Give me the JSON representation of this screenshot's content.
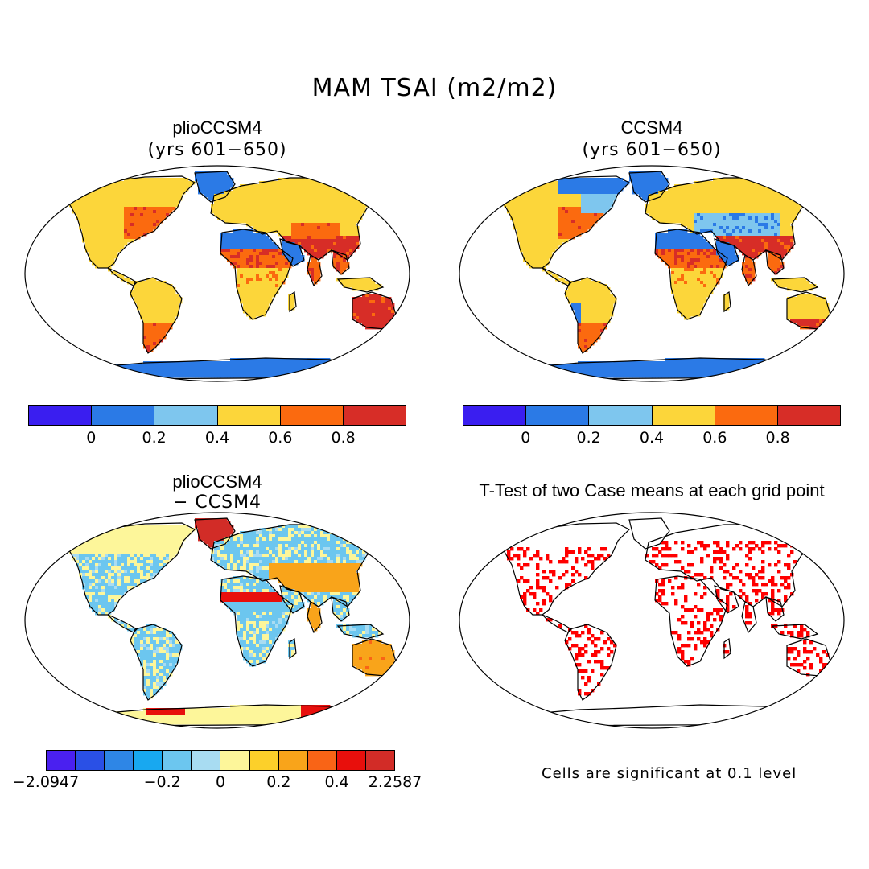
{
  "title": "MAM TSAI (m2/m2)",
  "panels": {
    "top_left": {
      "title": "plioCCSM4",
      "subtitle": "(yrs 601−650)"
    },
    "top_right": {
      "title": "CCSM4",
      "subtitle": "(yrs 601−650)"
    },
    "bottom_left": {
      "title": "plioCCSM4",
      "subtitle": "− CCSM4"
    },
    "bottom_right": {
      "title": "T-Test of two Case means at each grid point"
    }
  },
  "colorbar_main": {
    "colors": [
      "#3a1ef0",
      "#2b7ae6",
      "#7ec6ee",
      "#fcd63a",
      "#fb6a0f",
      "#d72d27"
    ],
    "tick_labels": [
      "0",
      "0.2",
      "0.4",
      "0.6",
      "0.8"
    ]
  },
  "colorbar_diff": {
    "colors": [
      "#4a20f0",
      "#2a50e6",
      "#2e86e6",
      "#18a8f0",
      "#6cc6ef",
      "#a8dcf2",
      "#fdf69a",
      "#fcd02a",
      "#f9a41a",
      "#f96416",
      "#e80f0c",
      "#d22c27"
    ],
    "tick_labels": [
      "−2.0947",
      "−0.2",
      "0",
      "0.2",
      "0.4",
      "2.2587"
    ]
  },
  "significance_note": "Cells are significant at 0.1 level",
  "map_colors": {
    "ocean": "#ffffff",
    "significant": "#ff0000",
    "outline": "#000000"
  }
}
